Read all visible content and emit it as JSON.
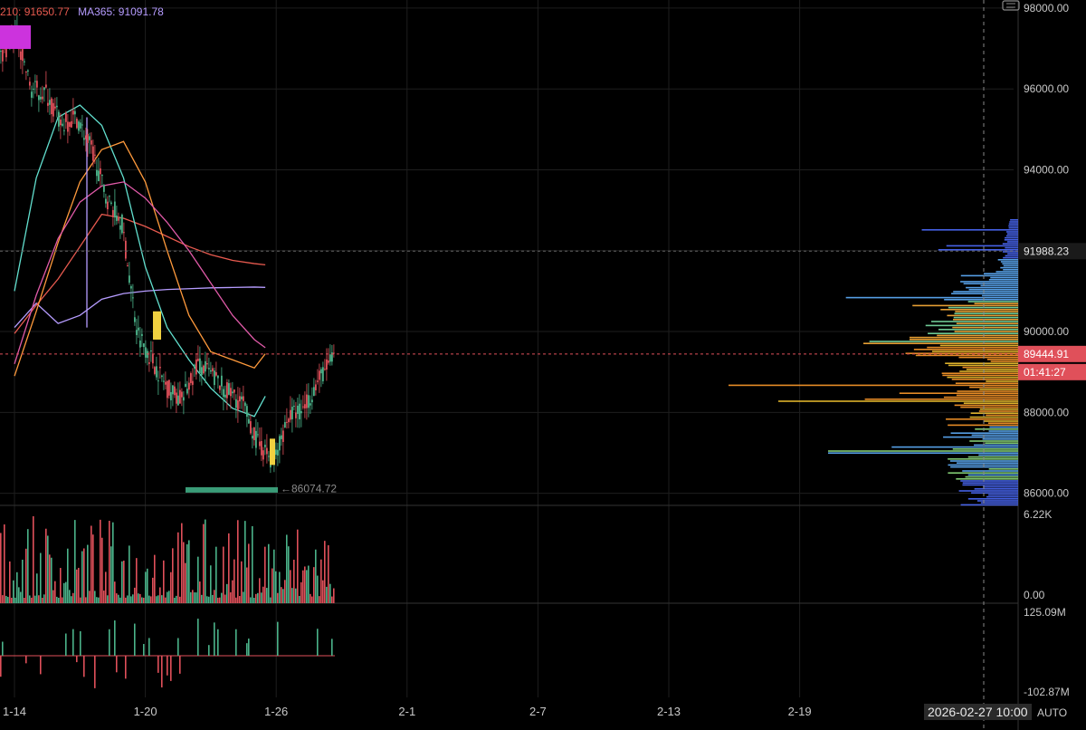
{
  "legend": {
    "ma210": {
      "label": "210: 91650.77",
      "color": "#e85a4f"
    },
    "ma365": {
      "label": "MA365: 91091.78",
      "color": "#b69cff"
    }
  },
  "auto_label": "AUTO",
  "crosshair_date": "2026-02-27 10:00",
  "price_axis": {
    "ticks": [
      {
        "label": "98000.00",
        "value": 98000
      },
      {
        "label": "96000.00",
        "value": 96000
      },
      {
        "label": "94000.00",
        "value": 94000
      },
      {
        "label": "90000.00",
        "value": 90000
      },
      {
        "label": "88000.00",
        "value": 88000
      },
      {
        "label": "86000.00",
        "value": 86000
      }
    ],
    "hline_label": "91988.23",
    "hline_value": 91988.23,
    "last_price_label": "89444.91",
    "last_price_value": 89444.91,
    "countdown": "01:41:27",
    "low_label": "←86074.72",
    "low_value": 86074.72
  },
  "volume_axis": {
    "top": "6.22K",
    "bottom": "0.00"
  },
  "osc_axis": {
    "top": "125.09M",
    "bottom": "-102.87M"
  },
  "chart_data": {
    "type": "candlestick",
    "x_ticks": [
      "1-14",
      "1-20",
      "1-26",
      "2-1",
      "2-7",
      "2-13",
      "2-19"
    ],
    "ylim": [
      85700,
      98200
    ],
    "reference_lines": [
      91988.23,
      89444.91
    ],
    "series": [
      {
        "name": "MA365",
        "color": "#b69cff",
        "values": [
          [
            0,
            90100
          ],
          [
            1,
            90700
          ],
          [
            2,
            90200
          ],
          [
            3,
            90400
          ],
          [
            4,
            90800
          ],
          [
            5,
            90940
          ],
          [
            6,
            91000
          ],
          [
            7,
            91040
          ],
          [
            8,
            91060
          ],
          [
            9,
            91080
          ],
          [
            10,
            91090
          ],
          [
            11,
            91100
          ],
          [
            11.5,
            91092
          ]
        ]
      },
      {
        "name": "210",
        "color": "#e85a4f",
        "values": [
          [
            0,
            89950
          ],
          [
            1,
            90650
          ],
          [
            2,
            91300
          ],
          [
            3,
            92100
          ],
          [
            4,
            92900
          ],
          [
            5,
            92800
          ],
          [
            6,
            92600
          ],
          [
            7,
            92350
          ],
          [
            8,
            92100
          ],
          [
            9,
            91900
          ],
          [
            10,
            91760
          ],
          [
            11,
            91680
          ],
          [
            11.5,
            91650
          ]
        ]
      }
    ],
    "other_lines": [
      {
        "color": "#62e0cf",
        "values": [
          [
            0,
            91000
          ],
          [
            1,
            93800
          ],
          [
            2,
            95300
          ],
          [
            3,
            95600
          ],
          [
            4,
            95100
          ],
          [
            5,
            93800
          ],
          [
            6,
            91600
          ],
          [
            7,
            90100
          ],
          [
            8,
            89300
          ],
          [
            9,
            88600
          ],
          [
            10,
            88100
          ],
          [
            11,
            87900
          ],
          [
            11.5,
            88400
          ]
        ]
      },
      {
        "color": "#ff9a3c",
        "values": [
          [
            0,
            88900
          ],
          [
            1,
            90500
          ],
          [
            2,
            92200
          ],
          [
            3,
            93700
          ],
          [
            4,
            94500
          ],
          [
            5,
            94700
          ],
          [
            6,
            93700
          ],
          [
            7,
            92000
          ],
          [
            8,
            90400
          ],
          [
            9,
            89500
          ],
          [
            10,
            89300
          ],
          [
            11,
            89100
          ],
          [
            11.5,
            89450
          ]
        ]
      },
      {
        "color": "#e05aa8",
        "values": [
          [
            0,
            89200
          ],
          [
            1,
            90900
          ],
          [
            2,
            92300
          ],
          [
            3,
            93200
          ],
          [
            4,
            93600
          ],
          [
            5,
            93700
          ],
          [
            6,
            93300
          ],
          [
            7,
            92700
          ],
          [
            8,
            92000
          ],
          [
            9,
            91200
          ],
          [
            10,
            90400
          ],
          [
            11,
            89800
          ],
          [
            11.5,
            89600
          ]
        ]
      }
    ],
    "candle_path": [
      96800,
      97400,
      96000,
      95900,
      95100,
      95300,
      94500,
      93300,
      92700,
      90000,
      89300,
      88600,
      88300,
      89200,
      88900,
      88500,
      88200,
      87200,
      86800,
      87900,
      88100,
      88800,
      89400
    ],
    "volume_axis_range": [
      0,
      6220
    ],
    "oscillator_range": [
      -102870000,
      125090000
    ]
  }
}
